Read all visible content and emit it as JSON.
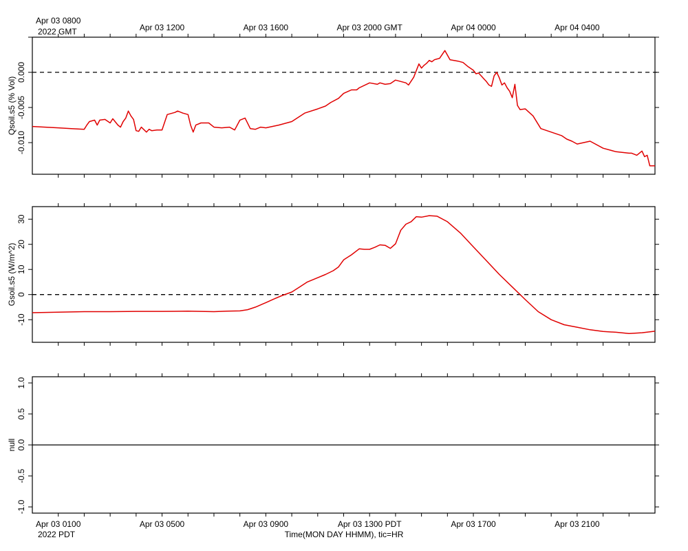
{
  "top_axis": {
    "labels": [
      "Apr 03 0800",
      "Apr 03 1200",
      "Apr 03 1600",
      "Apr 03 2000 GMT",
      "Apr 04 0000",
      "Apr 04 0400"
    ],
    "hours": [
      1,
      5,
      9,
      13,
      17,
      21
    ],
    "first_label_line2": "2022 GMT"
  },
  "bottom_axis": {
    "labels": [
      "Apr 03 0100",
      "Apr 03 0500",
      "Apr 03 0900",
      "Apr 03 1300 PDT",
      "Apr 03 1700",
      "Apr 03 2100"
    ],
    "hours": [
      1,
      5,
      9,
      13,
      17,
      21
    ],
    "first_label_line2": "2022 PDT",
    "title": "Time(MON DAY HHMM), tic=HR"
  },
  "chart_data": [
    {
      "type": "line",
      "name": "qsoil",
      "ylabel": "Qsoil.s5 (% Vol)",
      "xlim": [
        0,
        24
      ],
      "ylim": [
        -0.0145,
        0.005
      ],
      "yticks": [
        0.01,
        0.005,
        0.0,
        -0.005,
        -0.01
      ],
      "yticklabels": [
        "",
        "",
        "0.000",
        "-0.005",
        "-0.010"
      ],
      "color": "#e00000",
      "zero_line": true,
      "x": [
        0,
        0.5,
        1.0,
        1.5,
        2.0,
        2.1,
        2.2,
        2.4,
        2.5,
        2.6,
        2.8,
        3.0,
        3.1,
        3.3,
        3.4,
        3.5,
        3.6,
        3.7,
        3.8,
        3.9,
        4.0,
        4.1,
        4.2,
        4.4,
        4.5,
        4.6,
        4.8,
        5.0,
        5.2,
        5.5,
        5.6,
        5.8,
        6.0,
        6.1,
        6.2,
        6.3,
        6.5,
        6.8,
        7.0,
        7.3,
        7.6,
        7.8,
        8.0,
        8.2,
        8.4,
        8.6,
        8.8,
        9.0,
        9.5,
        10.0,
        10.5,
        11.0,
        11.3,
        11.5,
        11.8,
        12.0,
        12.3,
        12.5,
        12.6,
        13.0,
        13.3,
        13.4,
        13.6,
        13.8,
        14.0,
        14.2,
        14.4,
        14.5,
        14.7,
        14.9,
        15.0,
        15.1,
        15.2,
        15.3,
        15.4,
        15.5,
        15.7,
        15.9,
        16.1,
        16.4,
        16.6,
        16.8,
        17.0,
        17.1,
        17.2,
        17.3,
        17.4,
        17.5,
        17.6,
        17.7,
        17.8,
        17.9,
        18.0,
        18.1,
        18.2,
        18.3,
        18.4,
        18.5,
        18.6,
        18.7,
        18.8,
        19.0,
        19.3,
        19.6,
        20.0,
        20.4,
        20.6,
        20.8,
        21.0,
        21.5,
        22.0,
        22.5,
        23.0,
        23.1,
        23.3,
        23.5,
        23.6,
        23.7,
        23.8,
        24.0
      ],
      "y": [
        -0.0077,
        -0.0078,
        -0.0079,
        -0.008,
        -0.0081,
        -0.0075,
        -0.007,
        -0.0068,
        -0.0075,
        -0.0068,
        -0.0067,
        -0.0072,
        -0.0066,
        -0.0075,
        -0.0078,
        -0.007,
        -0.0065,
        -0.0055,
        -0.0062,
        -0.0067,
        -0.0083,
        -0.0084,
        -0.0078,
        -0.0085,
        -0.0081,
        -0.0083,
        -0.0082,
        -0.0082,
        -0.006,
        -0.0057,
        -0.0055,
        -0.0058,
        -0.006,
        -0.0075,
        -0.0085,
        -0.0075,
        -0.0072,
        -0.0072,
        -0.0078,
        -0.0079,
        -0.0078,
        -0.0082,
        -0.0068,
        -0.0065,
        -0.008,
        -0.0081,
        -0.0078,
        -0.0079,
        -0.0075,
        -0.007,
        -0.0058,
        -0.0052,
        -0.0048,
        -0.0043,
        -0.0037,
        -0.003,
        -0.0025,
        -0.0025,
        -0.0022,
        -0.0015,
        -0.0017,
        -0.0015,
        -0.0017,
        -0.0016,
        -0.0011,
        -0.0013,
        -0.0015,
        -0.0018,
        -0.0007,
        0.0012,
        0.0006,
        0.001,
        0.0013,
        0.0017,
        0.0015,
        0.0018,
        0.002,
        0.0031,
        0.0018,
        0.0016,
        0.0014,
        0.0008,
        0.0003,
        -0.0002,
        -0.0001,
        -0.0005,
        -0.0009,
        -0.0013,
        -0.0018,
        -0.002,
        -0.0005,
        0.0,
        -0.0008,
        -0.0018,
        -0.0015,
        -0.0022,
        -0.0027,
        -0.0036,
        -0.0017,
        -0.0047,
        -0.0053,
        -0.0052,
        -0.0062,
        -0.008,
        -0.0085,
        -0.009,
        -0.0095,
        -0.0098,
        -0.0102,
        -0.0098,
        -0.0108,
        -0.0113,
        -0.0115,
        -0.0115,
        -0.0118,
        -0.0112,
        -0.012,
        -0.0118,
        -0.0133,
        -0.0133
      ]
    },
    {
      "type": "line",
      "name": "gsoil",
      "ylabel": "Gsoil.s5 (W/m^2)",
      "xlim": [
        0,
        24
      ],
      "ylim": [
        -19,
        35
      ],
      "yticks": [
        30,
        20,
        10,
        0,
        -10
      ],
      "yticklabels": [
        "30",
        "20",
        "10",
        "0",
        "-10"
      ],
      "color": "#e00000",
      "zero_line": true,
      "x": [
        0,
        1,
        2,
        3,
        4,
        5,
        6,
        7,
        7.5,
        8.0,
        8.3,
        8.6,
        9.0,
        9.3,
        9.6,
        10.0,
        10.3,
        10.6,
        11.0,
        11.3,
        11.6,
        11.8,
        12.0,
        12.3,
        12.6,
        12.8,
        13.0,
        13.2,
        13.4,
        13.6,
        13.8,
        14.0,
        14.2,
        14.4,
        14.6,
        14.8,
        15.0,
        15.3,
        15.6,
        16.0,
        16.5,
        17.0,
        17.5,
        18.0,
        18.5,
        19.0,
        19.5,
        20.0,
        20.5,
        21.0,
        21.5,
        22.0,
        22.5,
        23.0,
        23.5,
        24.0
      ],
      "y": [
        -7.2,
        -7.0,
        -6.8,
        -6.8,
        -6.7,
        -6.7,
        -6.6,
        -6.8,
        -6.6,
        -6.5,
        -6.0,
        -5.0,
        -3.2,
        -1.8,
        -0.5,
        1.0,
        3.0,
        5.0,
        6.7,
        8.0,
        9.5,
        11.0,
        13.8,
        15.8,
        18.2,
        18.0,
        18.0,
        18.8,
        19.8,
        19.6,
        18.4,
        20.2,
        25.6,
        28.0,
        29.0,
        31.0,
        30.8,
        31.4,
        31.2,
        29.0,
        24.5,
        19.0,
        13.5,
        8.0,
        3.0,
        -2.0,
        -6.8,
        -10.0,
        -12.0,
        -13.0,
        -14.0,
        -14.7,
        -15.0,
        -15.5,
        -15.2,
        -14.6
      ]
    },
    {
      "type": "line",
      "name": "null",
      "ylabel": "null",
      "xlim": [
        0,
        24
      ],
      "ylim": [
        -1.1,
        1.1
      ],
      "yticks": [
        1.0,
        0.5,
        0.0,
        -0.5,
        -1.0
      ],
      "yticklabels": [
        "1.0",
        "0.5",
        "0.0",
        "-0.5",
        "-1.0"
      ],
      "color": "#000000",
      "zero_line": false,
      "x": [
        0,
        24
      ],
      "y": [
        0,
        0
      ]
    }
  ]
}
